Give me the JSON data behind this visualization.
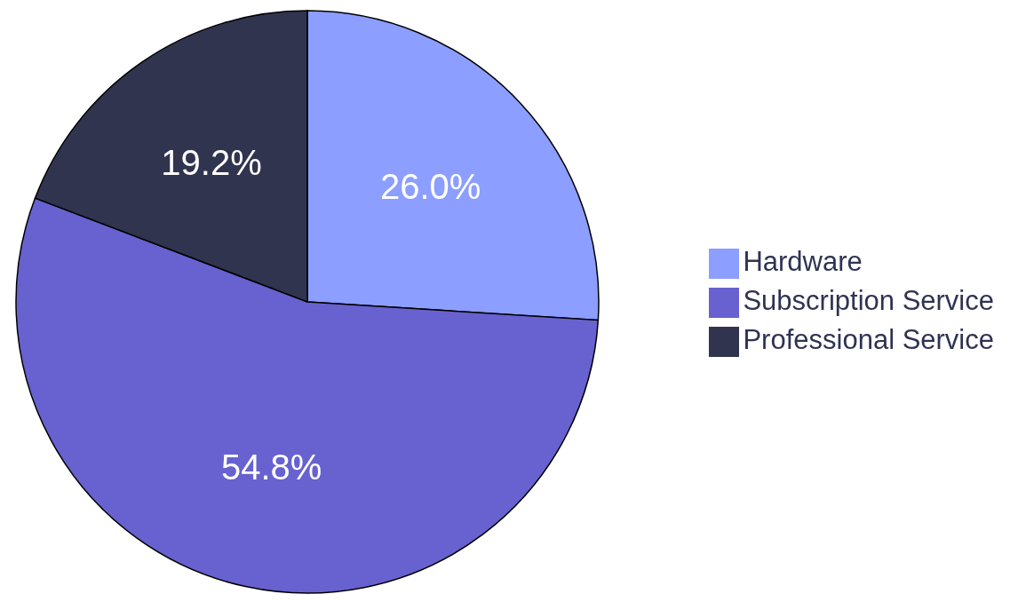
{
  "chart_data": {
    "type": "pie",
    "categories": [
      "Hardware",
      "Subscription Service",
      "Professional Service"
    ],
    "values": [
      26.0,
      54.8,
      19.2
    ],
    "value_labels": [
      "26.0%",
      "54.8%",
      "19.2%"
    ],
    "colors": [
      "#8c9eff",
      "#6762cf",
      "#30344f"
    ],
    "legend": "right"
  }
}
